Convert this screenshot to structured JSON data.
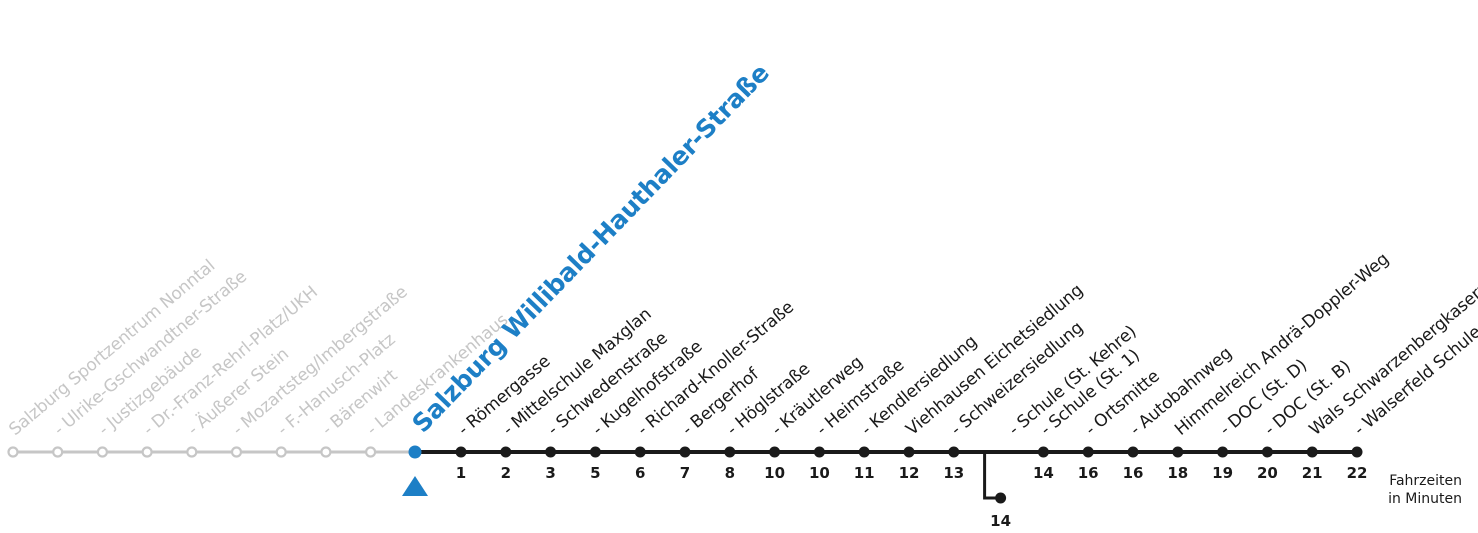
{
  "colors": {
    "past": "#c6c6c6",
    "current": "#1d7fc6",
    "future": "#1a1a1a"
  },
  "past_stops": [
    "Salzburg Sportzentrum Nonntal",
    "- Ulrike-Gschwandtner-Straße",
    "- Justizgebäude",
    "- Dr.-Franz-Rehrl-Platz/UKH",
    "- Äußerer Stein",
    "- Mozartsteg/Imbergstraße",
    "- F.-Hanusch-Platz",
    "- Bärenwirt",
    "- Landeskrankenhaus"
  ],
  "current_stop": "Salzburg Willibald-Hauthaler-Straße",
  "future_stops": [
    {
      "name": "- Römergasse",
      "time": "1"
    },
    {
      "name": "- Mittelschule Maxglan",
      "time": "2"
    },
    {
      "name": "- Schwedenstraße",
      "time": "3"
    },
    {
      "name": "- Kugelhofstraße",
      "time": "5"
    },
    {
      "name": "- Richard-Knoller-Straße",
      "time": "6"
    },
    {
      "name": "- Bergerhof",
      "time": "7"
    },
    {
      "name": "- Höglstraße",
      "time": "8"
    },
    {
      "name": "- Kräutlerweg",
      "time": "10"
    },
    {
      "name": "- Heimstraße",
      "time": "10"
    },
    {
      "name": "- Kendlersiedlung",
      "time": "11"
    },
    {
      "name": "Viehhausen Eichetsiedlung",
      "time": "12"
    },
    {
      "name": "- Schweizersiedlung",
      "time": "13"
    },
    {
      "name": "- Schule (St. Kehre)",
      "time": ""
    },
    {
      "name": "- Schule (St. 1)",
      "time": "14"
    },
    {
      "name": "- Ortsmitte",
      "time": "16"
    },
    {
      "name": "- Autobahnweg",
      "time": "16"
    },
    {
      "name": "Himmelreich Andrä-Doppler-Weg",
      "time": "18"
    },
    {
      "name": "- DOC (St. D)",
      "time": "19"
    },
    {
      "name": "- DOC (St. B)",
      "time": "20"
    },
    {
      "name": "Wals Schwarzenbergkaserne",
      "time": "21"
    },
    {
      "name": "- Walserfeld Schule",
      "time": "22"
    }
  ],
  "branch_time": "14",
  "legend": {
    "line1": "Fahrzeiten",
    "line2": "in Minuten"
  }
}
